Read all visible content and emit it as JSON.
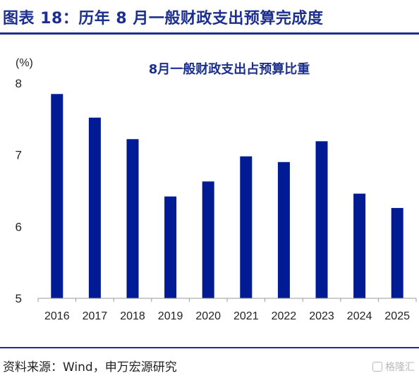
{
  "header": {
    "title": "图表 18：历年 8 月一般财政支出预算完成度"
  },
  "footer": {
    "source": "资料来源：Wind，申万宏源研究",
    "watermark": "格隆汇"
  },
  "chart_data": {
    "type": "bar",
    "title": "8月一般财政支出占预算比重",
    "unit_label": "(%)",
    "categories": [
      "2016",
      "2017",
      "2018",
      "2019",
      "2020",
      "2021",
      "2022",
      "2023",
      "2024",
      "2025"
    ],
    "values": [
      7.85,
      7.52,
      7.22,
      6.42,
      6.63,
      6.98,
      6.9,
      7.19,
      6.46,
      6.26
    ],
    "ylim": [
      5,
      8
    ],
    "yticks": [
      5,
      6,
      7,
      8
    ],
    "grid": false,
    "legend": "none",
    "bar_color": "#001b93"
  }
}
